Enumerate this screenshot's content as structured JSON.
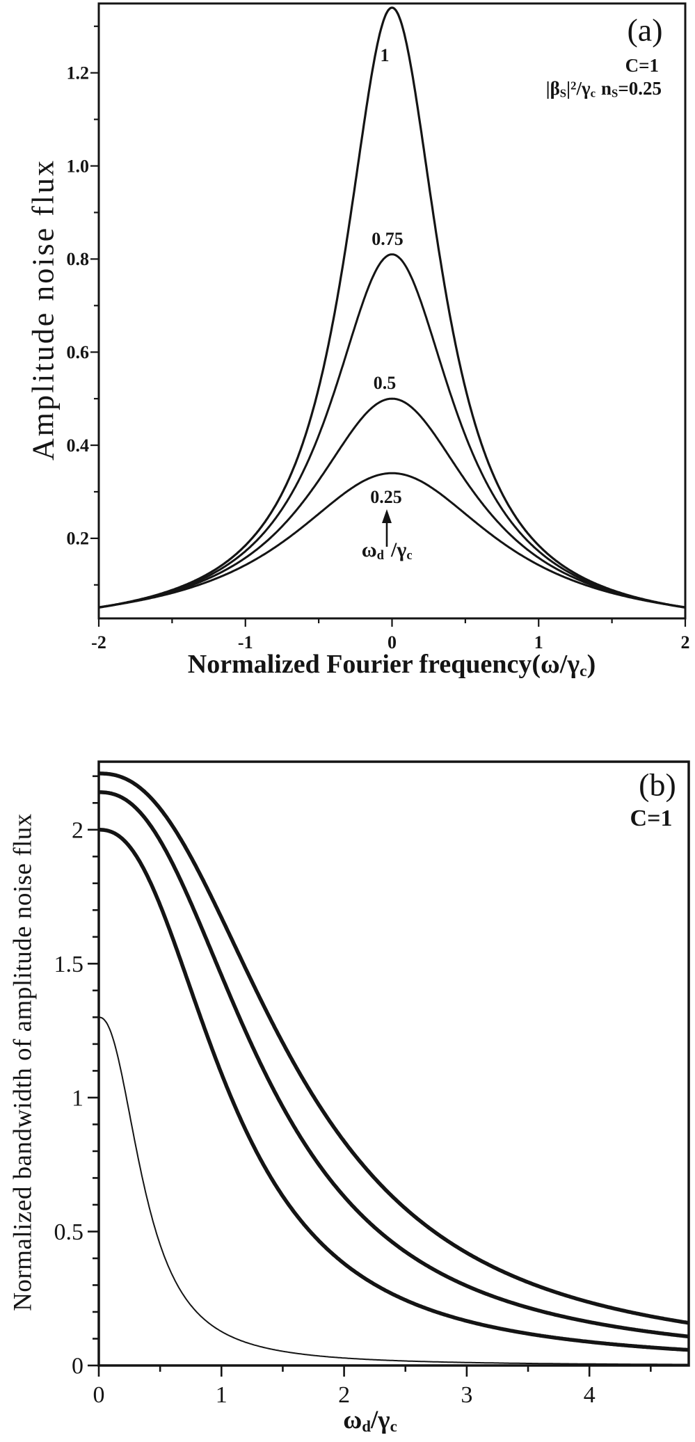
{
  "figure": {
    "background": "#ffffff",
    "ink": "#141414"
  },
  "panel_a": {
    "tag": "(a)",
    "c_label": "C=1",
    "formula": {
      "f1": "|β",
      "f2": "S",
      "f3": "|",
      "f4": "2",
      "f5": "/γ",
      "f6": "c",
      "f7": "n",
      "f8": "S",
      "f9": "=0.25"
    },
    "ylabel": "Amplitude noise flux",
    "xlabel": {
      "x1": "Normalized Fourier frequency(ω/γ",
      "x2": "c",
      "x3": ")"
    },
    "curve_labels": [
      "1",
      "0.75",
      "0.5",
      "0.25"
    ],
    "arrow_label": {
      "w": "ω",
      "ws": "d",
      "g": "/γ",
      "gs": "c"
    }
  },
  "panel_b": {
    "tag": "(b)",
    "c_label": "C=1",
    "ylabel": "Normalized bandwidth of amplitude noise flux",
    "xlabel": {
      "w": "ω",
      "ws": "d",
      "g": "/γ",
      "gs": "c"
    }
  },
  "chart_data": [
    {
      "type": "line",
      "panel": "a",
      "title": "(a)",
      "xlabel": "Normalized Fourier frequency(ω/γc)",
      "ylabel": "Amplitude noise flux",
      "annotations": [
        "C=1",
        "|βS|²/γc nS=0.25",
        "ωd/γc (arrow pointing up at curve labels)"
      ],
      "xlim": [
        -2,
        2
      ],
      "ylim": [
        0.028,
        1.349
      ],
      "grid": false,
      "legend": "none; curves labeled inline with ωd/γc values 1, 0.75, 0.5, 0.25",
      "x_major_ticks": [
        {
          "v": -2,
          "t": "-2"
        },
        {
          "v": -1,
          "t": "-1"
        },
        {
          "v": 0,
          "t": "0"
        },
        {
          "v": 1,
          "t": "1"
        },
        {
          "v": 2,
          "t": "2"
        }
      ],
      "x_minor_ticks": [
        -1.5,
        -0.5,
        0.5,
        1.5
      ],
      "y_major_ticks": [
        {
          "v": 0.2,
          "t": "0.2"
        },
        {
          "v": 0.4,
          "t": "0.4"
        },
        {
          "v": 0.6,
          "t": "0.6"
        },
        {
          "v": 0.8,
          "t": "0.8"
        },
        {
          "v": 1,
          "t": "1.0"
        },
        {
          "v": 1.2,
          "t": "1.2"
        }
      ],
      "y_minor_ticks": [
        0.1,
        0.3,
        0.5,
        0.7,
        0.9,
        1.1,
        1.3
      ],
      "series": [
        {
          "name": "ωd/γc = 1",
          "label": "1",
          "model": "lorentzian",
          "peak": 1.34,
          "center": 0,
          "halfwidth": 0.4,
          "stroke_width": 3.2,
          "points": [
            [
              -2,
              0.051
            ],
            [
              -1.5,
              0.089
            ],
            [
              -1,
              0.185
            ],
            [
              -0.5,
              0.523
            ],
            [
              -0.25,
              0.963
            ],
            [
              0,
              1.34
            ],
            [
              0.25,
              0.963
            ],
            [
              0.5,
              0.523
            ],
            [
              1,
              0.185
            ],
            [
              1.5,
              0.089
            ],
            [
              2,
              0.051
            ]
          ]
        },
        {
          "name": "ωd/γc = 0.75",
          "label": "0.75",
          "model": "lorentzian",
          "peak": 0.81,
          "center": 0,
          "halfwidth": 0.52,
          "stroke_width": 3,
          "points": [
            [
              -2,
              0.051
            ],
            [
              -1,
              0.172
            ],
            [
              -0.5,
              0.421
            ],
            [
              -0.25,
              0.658
            ],
            [
              0,
              0.81
            ],
            [
              0.25,
              0.658
            ],
            [
              0.5,
              0.421
            ],
            [
              1,
              0.172
            ],
            [
              2,
              0.051
            ]
          ]
        },
        {
          "name": "ωd/γc = 0.5",
          "label": "0.5",
          "model": "lorentzian",
          "peak": 0.5,
          "center": 0,
          "halfwidth": 0.68,
          "stroke_width": 3,
          "points": [
            [
              -2,
              0.052
            ],
            [
              -1,
              0.158
            ],
            [
              -0.5,
              0.324
            ],
            [
              0,
              0.5
            ],
            [
              0.5,
              0.324
            ],
            [
              1,
              0.158
            ],
            [
              2,
              0.052
            ]
          ]
        },
        {
          "name": "ωd/γc = 0.25",
          "label": "0.25",
          "model": "lorentzian",
          "peak": 0.34,
          "center": 0,
          "halfwidth": 0.85,
          "stroke_width": 3,
          "points": [
            [
              -2,
              0.052
            ],
            [
              -1,
              0.143
            ],
            [
              -0.5,
              0.253
            ],
            [
              0,
              0.34
            ],
            [
              0.5,
              0.253
            ],
            [
              1,
              0.143
            ],
            [
              2,
              0.052
            ]
          ]
        }
      ]
    },
    {
      "type": "line",
      "panel": "b",
      "title": "(b)",
      "xlabel": "ωd/γc",
      "ylabel": "Normalized bandwidth of amplitude noise flux",
      "annotations": [
        "C=1"
      ],
      "xlim": [
        0,
        4.81
      ],
      "ylim": [
        0,
        2.254
      ],
      "grid": false,
      "legend": "none",
      "x_major_ticks": [
        {
          "v": 0,
          "t": "0"
        },
        {
          "v": 1,
          "t": "1"
        },
        {
          "v": 2,
          "t": "2"
        },
        {
          "v": 3,
          "t": "3"
        },
        {
          "v": 4,
          "t": "4"
        }
      ],
      "x_minor_ticks": [
        0.5,
        1.5,
        2.5,
        3.5,
        4.5
      ],
      "y_major_ticks": [
        {
          "v": 0,
          "t": "0"
        },
        {
          "v": 0.5,
          "t": "0.5"
        },
        {
          "v": 1,
          "t": "1"
        },
        {
          "v": 1.5,
          "t": "1.5"
        },
        {
          "v": 2,
          "t": "2"
        }
      ],
      "y_minor_ticks": [
        0.1,
        0.2,
        0.3,
        0.4,
        0.6,
        0.7,
        0.8,
        0.9,
        1.1,
        1.2,
        1.3,
        1.4,
        1.6,
        1.7,
        1.8,
        1.9,
        2.1,
        2.2
      ],
      "series": [
        {
          "name": "curve-1 (top, thick)",
          "model": "hill",
          "A": 2.21,
          "x0": 1.62,
          "p": 2.35,
          "stroke_width": 5.5,
          "points": [
            [
              0,
              2.21
            ],
            [
              0.5,
              2.08
            ],
            [
              1,
              1.67
            ],
            [
              1.5,
              1.2
            ],
            [
              2,
              0.84
            ],
            [
              2.5,
              0.59
            ],
            [
              3,
              0.42
            ],
            [
              3.5,
              0.31
            ],
            [
              4,
              0.24
            ],
            [
              4.8,
              0.16
            ]
          ]
        },
        {
          "name": "curve-2 (thick)",
          "model": "hill",
          "A": 2.14,
          "x0": 1.38,
          "p": 2.35,
          "stroke_width": 5.5,
          "points": [
            [
              0,
              2.14
            ],
            [
              0.5,
              1.96
            ],
            [
              1,
              1.46
            ],
            [
              1.5,
              0.97
            ],
            [
              2,
              0.63
            ],
            [
              2.5,
              0.43
            ],
            [
              3,
              0.3
            ],
            [
              3.5,
              0.22
            ],
            [
              4,
              0.16
            ],
            [
              4.8,
              0.11
            ]
          ]
        },
        {
          "name": "curve-3 (thick)",
          "model": "hill",
          "A": 2.0,
          "x0": 1.08,
          "p": 2.35,
          "stroke_width": 5.5,
          "points": [
            [
              0,
              2.0
            ],
            [
              0.5,
              1.72
            ],
            [
              1,
              1.09
            ],
            [
              1.5,
              0.63
            ],
            [
              2,
              0.38
            ],
            [
              2.5,
              0.24
            ],
            [
              3,
              0.17
            ],
            [
              3.5,
              0.12
            ],
            [
              4,
              0.09
            ],
            [
              4.8,
              0.06
            ]
          ]
        },
        {
          "name": "curve-4 (bottom, thin)",
          "model": "hill",
          "A": 1.3,
          "x0": 0.38,
          "p": 2.3,
          "stroke_width": 2,
          "points": [
            [
              0,
              1.3
            ],
            [
              0.25,
              0.94
            ],
            [
              0.5,
              0.45
            ],
            [
              0.75,
              0.23
            ],
            [
              1,
              0.13
            ],
            [
              1.5,
              0.05
            ],
            [
              2,
              0.03
            ],
            [
              2.5,
              0.02
            ],
            [
              3,
              0.01
            ],
            [
              4,
              0.01
            ],
            [
              4.8,
              0
            ]
          ]
        }
      ]
    }
  ]
}
